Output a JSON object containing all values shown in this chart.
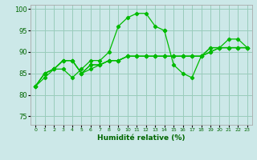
{
  "title": "",
  "xlabel": "Humidité relative (%)",
  "ylabel": "",
  "bg_color": "#cce8e8",
  "grid_color": "#99ccbb",
  "line_color": "#00bb00",
  "xlim": [
    -0.5,
    23.5
  ],
  "ylim": [
    73,
    101
  ],
  "yticks": [
    75,
    80,
    85,
    90,
    95,
    100
  ],
  "xticks": [
    0,
    1,
    2,
    3,
    4,
    5,
    6,
    7,
    8,
    9,
    10,
    11,
    12,
    13,
    14,
    15,
    16,
    17,
    18,
    19,
    20,
    21,
    22,
    23
  ],
  "s1_x": [
    0,
    1,
    2,
    3,
    4,
    5,
    6,
    7,
    8,
    9,
    10,
    11,
    12,
    13,
    14
  ],
  "s1_y": [
    82,
    84,
    86,
    86,
    84,
    86,
    88,
    88,
    90,
    96,
    98,
    99,
    99,
    96,
    95
  ],
  "s2_x": [
    14,
    15,
    16,
    17,
    18,
    19,
    20,
    21,
    22,
    23
  ],
  "s2_y": [
    95,
    87,
    85,
    84,
    89,
    91,
    91,
    93,
    93,
    91
  ],
  "s3_x": [
    0,
    1,
    2,
    3,
    4,
    5,
    6,
    7,
    8,
    9,
    10,
    11,
    12,
    13,
    14,
    15,
    16,
    17,
    18,
    19,
    20,
    21,
    22,
    23
  ],
  "s3_y": [
    82,
    85,
    86,
    88,
    88,
    85,
    86,
    87,
    88,
    88,
    89,
    89,
    89,
    89,
    89,
    89,
    89,
    89,
    89,
    90,
    91,
    91,
    91,
    91
  ],
  "s4_x": [
    0,
    1,
    2,
    3,
    4,
    5,
    6,
    7,
    8,
    9,
    10,
    11,
    12,
    13,
    14,
    15,
    16,
    17,
    18,
    19,
    20,
    21,
    22,
    23
  ],
  "s4_y": [
    82,
    85,
    86,
    88,
    88,
    85,
    87,
    87,
    88,
    88,
    89,
    89,
    89,
    89,
    89,
    89,
    89,
    89,
    89,
    90,
    91,
    91,
    91,
    91
  ],
  "s5_x": [
    0,
    1,
    2,
    3,
    4,
    5,
    6,
    7,
    8,
    9,
    10,
    11,
    12,
    13,
    14,
    15,
    16,
    17,
    18,
    19,
    20,
    21,
    22,
    23
  ],
  "s5_y": [
    82,
    85,
    86,
    88,
    88,
    85,
    87,
    87,
    88,
    88,
    89,
    89,
    89,
    89,
    89,
    89,
    89,
    89,
    89,
    91,
    91,
    91,
    91,
    91
  ]
}
